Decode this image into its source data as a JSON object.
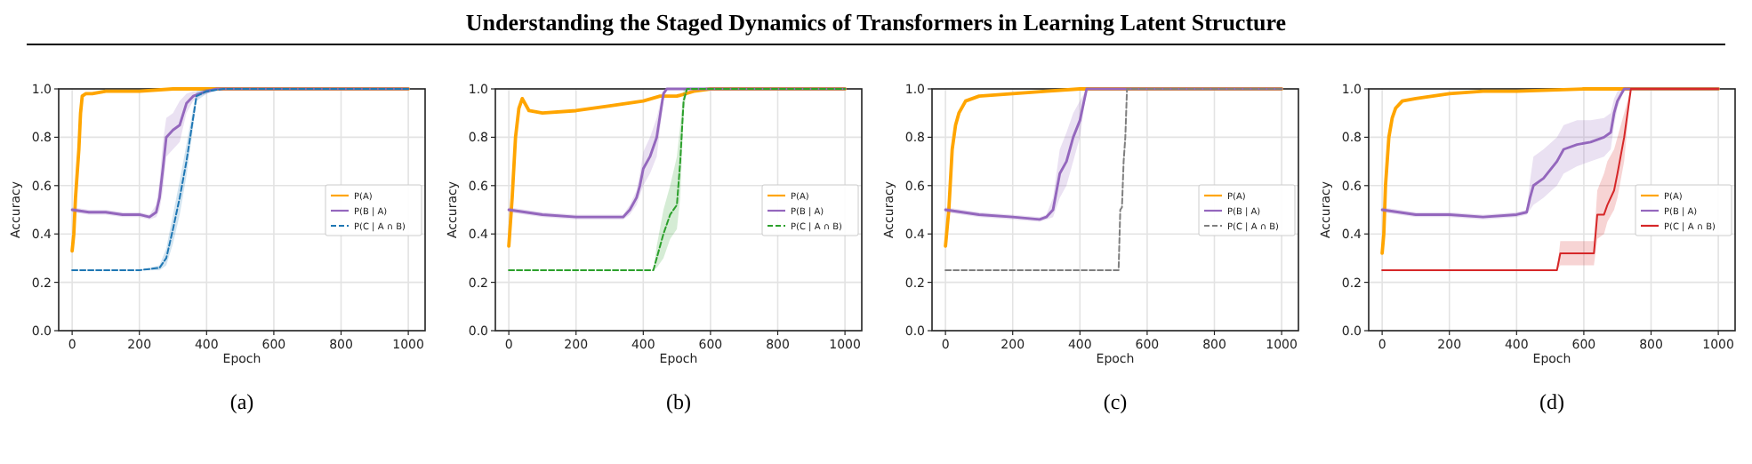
{
  "chart_data": [
    {
      "type": "other",
      "title": "Understanding the Staged Dynamics of Transformers in Learning Latent Structure"
    },
    {
      "type": "line",
      "xlabel": "Epoch",
      "ylabel": "Accuracy",
      "annotations": [
        "(a)"
      ],
      "xlim": [
        -40,
        1050
      ],
      "xticks": [
        0,
        200,
        400,
        600,
        800,
        1000
      ],
      "ylim": [
        0,
        1
      ],
      "yticks": [
        {
          "value": 0,
          "label": "0.0"
        },
        {
          "value": 0.2,
          "label": "0.2"
        },
        {
          "value": 0.4,
          "label": "0.4"
        },
        {
          "value": 0.6,
          "label": "0.6"
        },
        {
          "value": 0.8,
          "label": "0.8"
        },
        {
          "value": 1,
          "label": "1.0"
        }
      ],
      "grid": true,
      "legend": "right",
      "marker": "none",
      "series": [
        {
          "name": "P(A)",
          "color": "#ffa500",
          "line_style": "solid",
          "x": [
            0,
            5,
            10,
            15,
            20,
            25,
            30,
            40,
            60,
            100,
            200,
            300,
            400,
            500,
            1000
          ],
          "values": [
            0.33,
            0.4,
            0.55,
            0.65,
            0.75,
            0.9,
            0.97,
            0.98,
            0.98,
            0.99,
            0.99,
            1.0,
            1.0,
            1.0,
            1.0
          ]
        },
        {
          "name": "P(B | A)",
          "color": "#9467bd",
          "line_style": "solid",
          "x": [
            0,
            50,
            100,
            150,
            200,
            230,
            250,
            260,
            270,
            280,
            300,
            320,
            340,
            360,
            380,
            400,
            430,
            500,
            1000
          ],
          "values": [
            0.5,
            0.49,
            0.49,
            0.48,
            0.48,
            0.47,
            0.49,
            0.55,
            0.67,
            0.8,
            0.83,
            0.85,
            0.94,
            0.97,
            0.98,
            0.99,
            1.0,
            1.0,
            1.0
          ],
          "lower": [
            0.49,
            0.48,
            0.48,
            0.47,
            0.47,
            0.46,
            0.47,
            0.5,
            0.58,
            0.72,
            0.75,
            0.78,
            0.9,
            0.95,
            0.97,
            0.98,
            1.0,
            1.0,
            1.0
          ],
          "upper": [
            0.51,
            0.5,
            0.5,
            0.49,
            0.49,
            0.48,
            0.52,
            0.62,
            0.78,
            0.88,
            0.9,
            0.95,
            0.98,
            0.99,
            0.99,
            1.0,
            1.0,
            1.0,
            1.0
          ]
        },
        {
          "name": "P(C | A ∩ B)",
          "color": "#1f77b4",
          "line_style": "dashed",
          "x": [
            0,
            100,
            200,
            260,
            280,
            300,
            320,
            340,
            360,
            370,
            400,
            450,
            1000
          ],
          "values": [
            0.25,
            0.25,
            0.25,
            0.26,
            0.3,
            0.42,
            0.55,
            0.7,
            0.88,
            0.97,
            0.99,
            1.0,
            1.0
          ],
          "lower": [
            0.25,
            0.25,
            0.25,
            0.25,
            0.27,
            0.36,
            0.48,
            0.64,
            0.84,
            0.95,
            0.98,
            1.0,
            1.0
          ],
          "upper": [
            0.25,
            0.25,
            0.25,
            0.27,
            0.34,
            0.48,
            0.62,
            0.77,
            0.92,
            0.99,
            1.0,
            1.0,
            1.0
          ]
        }
      ]
    },
    {
      "type": "line",
      "xlabel": "Epoch",
      "ylabel": "Accuracy",
      "annotations": [
        "(b)"
      ],
      "xlim": [
        -40,
        1050
      ],
      "xticks": [
        0,
        200,
        400,
        600,
        800,
        1000
      ],
      "ylim": [
        0,
        1
      ],
      "yticks": [
        {
          "value": 0,
          "label": "0.0"
        },
        {
          "value": 0.2,
          "label": "0.2"
        },
        {
          "value": 0.4,
          "label": "0.4"
        },
        {
          "value": 0.6,
          "label": "0.6"
        },
        {
          "value": 0.8,
          "label": "0.8"
        },
        {
          "value": 1,
          "label": "1.0"
        }
      ],
      "grid": true,
      "legend": "right",
      "marker": "none",
      "series": [
        {
          "name": "P(A)",
          "color": "#ffa500",
          "line_style": "solid",
          "x": [
            0,
            10,
            20,
            30,
            40,
            60,
            100,
            200,
            300,
            400,
            450,
            500,
            550,
            600,
            1000
          ],
          "values": [
            0.35,
            0.55,
            0.8,
            0.92,
            0.96,
            0.91,
            0.9,
            0.91,
            0.93,
            0.95,
            0.97,
            0.97,
            0.99,
            1.0,
            1.0
          ]
        },
        {
          "name": "P(B | A)",
          "color": "#9467bd",
          "line_style": "solid",
          "x": [
            0,
            50,
            100,
            200,
            300,
            340,
            360,
            380,
            390,
            400,
            420,
            440,
            460,
            470,
            500,
            1000
          ],
          "values": [
            0.5,
            0.49,
            0.48,
            0.47,
            0.47,
            0.47,
            0.5,
            0.55,
            0.6,
            0.67,
            0.72,
            0.8,
            0.98,
            1.0,
            1.0,
            1.0
          ],
          "lower": [
            0.49,
            0.48,
            0.47,
            0.46,
            0.46,
            0.46,
            0.48,
            0.52,
            0.56,
            0.6,
            0.65,
            0.72,
            0.95,
            1.0,
            1.0,
            1.0
          ],
          "upper": [
            0.51,
            0.5,
            0.49,
            0.48,
            0.48,
            0.48,
            0.52,
            0.58,
            0.65,
            0.74,
            0.8,
            0.88,
            1.0,
            1.0,
            1.0,
            1.0
          ]
        },
        {
          "name": "P(C | A ∩ B)",
          "color": "#2ca02c",
          "line_style": "dashed",
          "x": [
            0,
            200,
            430,
            440,
            460,
            480,
            500,
            510,
            520,
            530,
            1000
          ],
          "values": [
            0.25,
            0.25,
            0.25,
            0.3,
            0.4,
            0.48,
            0.52,
            0.7,
            0.95,
            1.0,
            1.0
          ],
          "lower": [
            0.25,
            0.25,
            0.25,
            0.26,
            0.3,
            0.38,
            0.42,
            0.55,
            0.9,
            1.0,
            1.0
          ],
          "upper": [
            0.25,
            0.25,
            0.25,
            0.35,
            0.5,
            0.6,
            0.72,
            0.85,
            1.0,
            1.0,
            1.0
          ]
        }
      ]
    },
    {
      "type": "line",
      "xlabel": "Epoch",
      "ylabel": "Accuracy",
      "annotations": [
        "(c)"
      ],
      "xlim": [
        -40,
        1050
      ],
      "xticks": [
        0,
        200,
        400,
        600,
        800,
        1000
      ],
      "ylim": [
        0,
        1
      ],
      "yticks": [
        {
          "value": 0,
          "label": "0.0"
        },
        {
          "value": 0.2,
          "label": "0.2"
        },
        {
          "value": 0.4,
          "label": "0.4"
        },
        {
          "value": 0.6,
          "label": "0.6"
        },
        {
          "value": 0.8,
          "label": "0.8"
        },
        {
          "value": 1,
          "label": "1.0"
        }
      ],
      "grid": true,
      "legend": "right",
      "marker": "none",
      "series": [
        {
          "name": "P(A)",
          "color": "#ffa500",
          "line_style": "solid",
          "x": [
            0,
            10,
            20,
            30,
            40,
            60,
            100,
            200,
            300,
            400,
            1000
          ],
          "values": [
            0.35,
            0.5,
            0.75,
            0.85,
            0.9,
            0.95,
            0.97,
            0.98,
            0.99,
            1.0,
            1.0
          ]
        },
        {
          "name": "P(B | A)",
          "color": "#9467bd",
          "line_style": "solid",
          "x": [
            0,
            50,
            100,
            200,
            280,
            300,
            320,
            340,
            360,
            380,
            400,
            420,
            430,
            1000
          ],
          "values": [
            0.5,
            0.49,
            0.48,
            0.47,
            0.46,
            0.47,
            0.5,
            0.65,
            0.7,
            0.8,
            0.87,
            1.0,
            1.0,
            1.0
          ],
          "lower": [
            0.49,
            0.48,
            0.47,
            0.46,
            0.45,
            0.46,
            0.47,
            0.55,
            0.6,
            0.7,
            0.8,
            1.0,
            1.0,
            1.0
          ],
          "upper": [
            0.51,
            0.5,
            0.49,
            0.48,
            0.47,
            0.48,
            0.55,
            0.75,
            0.82,
            0.9,
            0.95,
            1.0,
            1.0,
            1.0
          ]
        },
        {
          "name": "P(C | A ∩ B)",
          "color": "#7f7f7f",
          "line_style": "dashed",
          "x": [
            0,
            200,
            400,
            515,
            520,
            525,
            530,
            535,
            540,
            1000
          ],
          "values": [
            0.25,
            0.25,
            0.25,
            0.25,
            0.5,
            0.51,
            0.7,
            0.8,
            1.0,
            1.0
          ]
        }
      ]
    },
    {
      "type": "line",
      "xlabel": "Epoch",
      "ylabel": "Accuracy",
      "annotations": [
        "(d)"
      ],
      "xlim": [
        -40,
        1050
      ],
      "xticks": [
        0,
        200,
        400,
        600,
        800,
        1000
      ],
      "ylim": [
        0,
        1
      ],
      "yticks": [
        {
          "value": 0,
          "label": "0.0"
        },
        {
          "value": 0.2,
          "label": "0.2"
        },
        {
          "value": 0.4,
          "label": "0.4"
        },
        {
          "value": 0.6,
          "label": "0.6"
        },
        {
          "value": 0.8,
          "label": "0.8"
        },
        {
          "value": 1,
          "label": "1.0"
        }
      ],
      "grid": true,
      "legend": "right",
      "marker": "none",
      "series": [
        {
          "name": "P(A)",
          "color": "#ffa500",
          "line_style": "solid",
          "x": [
            0,
            5,
            10,
            20,
            30,
            40,
            60,
            100,
            200,
            300,
            400,
            600,
            1000
          ],
          "values": [
            0.32,
            0.4,
            0.6,
            0.8,
            0.88,
            0.92,
            0.95,
            0.96,
            0.98,
            0.99,
            0.99,
            1.0,
            1.0
          ]
        },
        {
          "name": "P(B | A)",
          "color": "#9467bd",
          "line_style": "solid",
          "x": [
            0,
            50,
            100,
            200,
            300,
            400,
            430,
            440,
            450,
            480,
            520,
            540,
            580,
            620,
            660,
            680,
            690,
            700,
            720,
            1000
          ],
          "values": [
            0.5,
            0.49,
            0.48,
            0.48,
            0.47,
            0.48,
            0.49,
            0.55,
            0.6,
            0.63,
            0.7,
            0.75,
            0.77,
            0.78,
            0.8,
            0.82,
            0.9,
            0.95,
            1.0,
            1.0
          ],
          "lower": [
            0.49,
            0.48,
            0.47,
            0.47,
            0.46,
            0.47,
            0.48,
            0.5,
            0.52,
            0.55,
            0.6,
            0.65,
            0.68,
            0.7,
            0.72,
            0.75,
            0.85,
            0.92,
            1.0,
            1.0
          ],
          "upper": [
            0.51,
            0.5,
            0.49,
            0.49,
            0.48,
            0.49,
            0.5,
            0.62,
            0.72,
            0.75,
            0.8,
            0.85,
            0.87,
            0.87,
            0.88,
            0.9,
            0.96,
            0.99,
            1.0,
            1.0
          ]
        },
        {
          "name": "P(C | A ∩ B)",
          "color": "#d62728",
          "line_style": "solid",
          "x": [
            0,
            200,
            400,
            520,
            530,
            630,
            640,
            660,
            670,
            690,
            700,
            720,
            730,
            740,
            1000
          ],
          "values": [
            0.25,
            0.25,
            0.25,
            0.25,
            0.32,
            0.32,
            0.48,
            0.48,
            0.52,
            0.58,
            0.65,
            0.8,
            0.9,
            1.0,
            1.0
          ],
          "lower": [
            0.25,
            0.25,
            0.25,
            0.25,
            0.27,
            0.27,
            0.38,
            0.4,
            0.45,
            0.5,
            0.55,
            0.7,
            0.85,
            1.0,
            1.0
          ],
          "upper": [
            0.25,
            0.25,
            0.25,
            0.25,
            0.37,
            0.37,
            0.58,
            0.65,
            0.7,
            0.75,
            0.8,
            0.9,
            0.95,
            1.0,
            1.0
          ]
        }
      ]
    }
  ]
}
